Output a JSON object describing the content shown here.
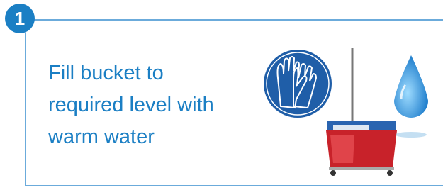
{
  "step": {
    "number": "1",
    "text_lines": [
      "Fill bucket to",
      "required level with",
      "warm water"
    ]
  }
}
